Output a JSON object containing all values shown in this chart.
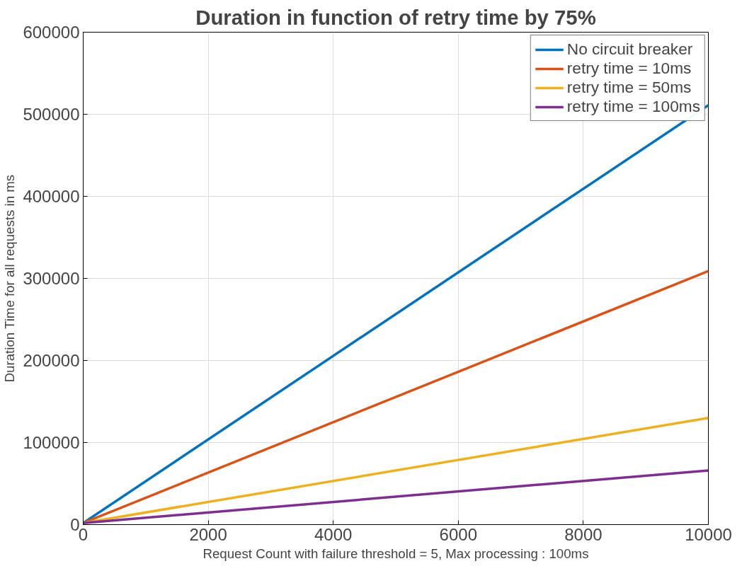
{
  "chart_data": {
    "type": "line",
    "title": "Duration in function of retry time by 75%",
    "xlabel": "Request Count with failure threshold = 5, Max processing : 100ms",
    "ylabel": "Duration Time for all requests in ms",
    "x": [
      0,
      10000
    ],
    "series": [
      {
        "name": "No circuit breaker",
        "color": "#0072bd",
        "values": [
          2000,
          511000
        ]
      },
      {
        "name": "retry time = 10ms",
        "color": "#d95319",
        "values": [
          2000,
          309000
        ]
      },
      {
        "name": "retry time = 50ms",
        "color": "#edb120",
        "values": [
          2000,
          130000
        ]
      },
      {
        "name": "retry time = 100ms",
        "color": "#7e2f8e",
        "values": [
          2000,
          66000
        ]
      }
    ],
    "xlim": [
      0,
      10000
    ],
    "ylim": [
      0,
      600000
    ],
    "xticks": [
      0,
      2000,
      4000,
      6000,
      8000,
      10000
    ],
    "yticks": [
      0,
      100000,
      200000,
      300000,
      400000,
      500000,
      600000
    ],
    "grid": true,
    "legend": "top right",
    "marker": "none",
    "line_style": "solid"
  }
}
